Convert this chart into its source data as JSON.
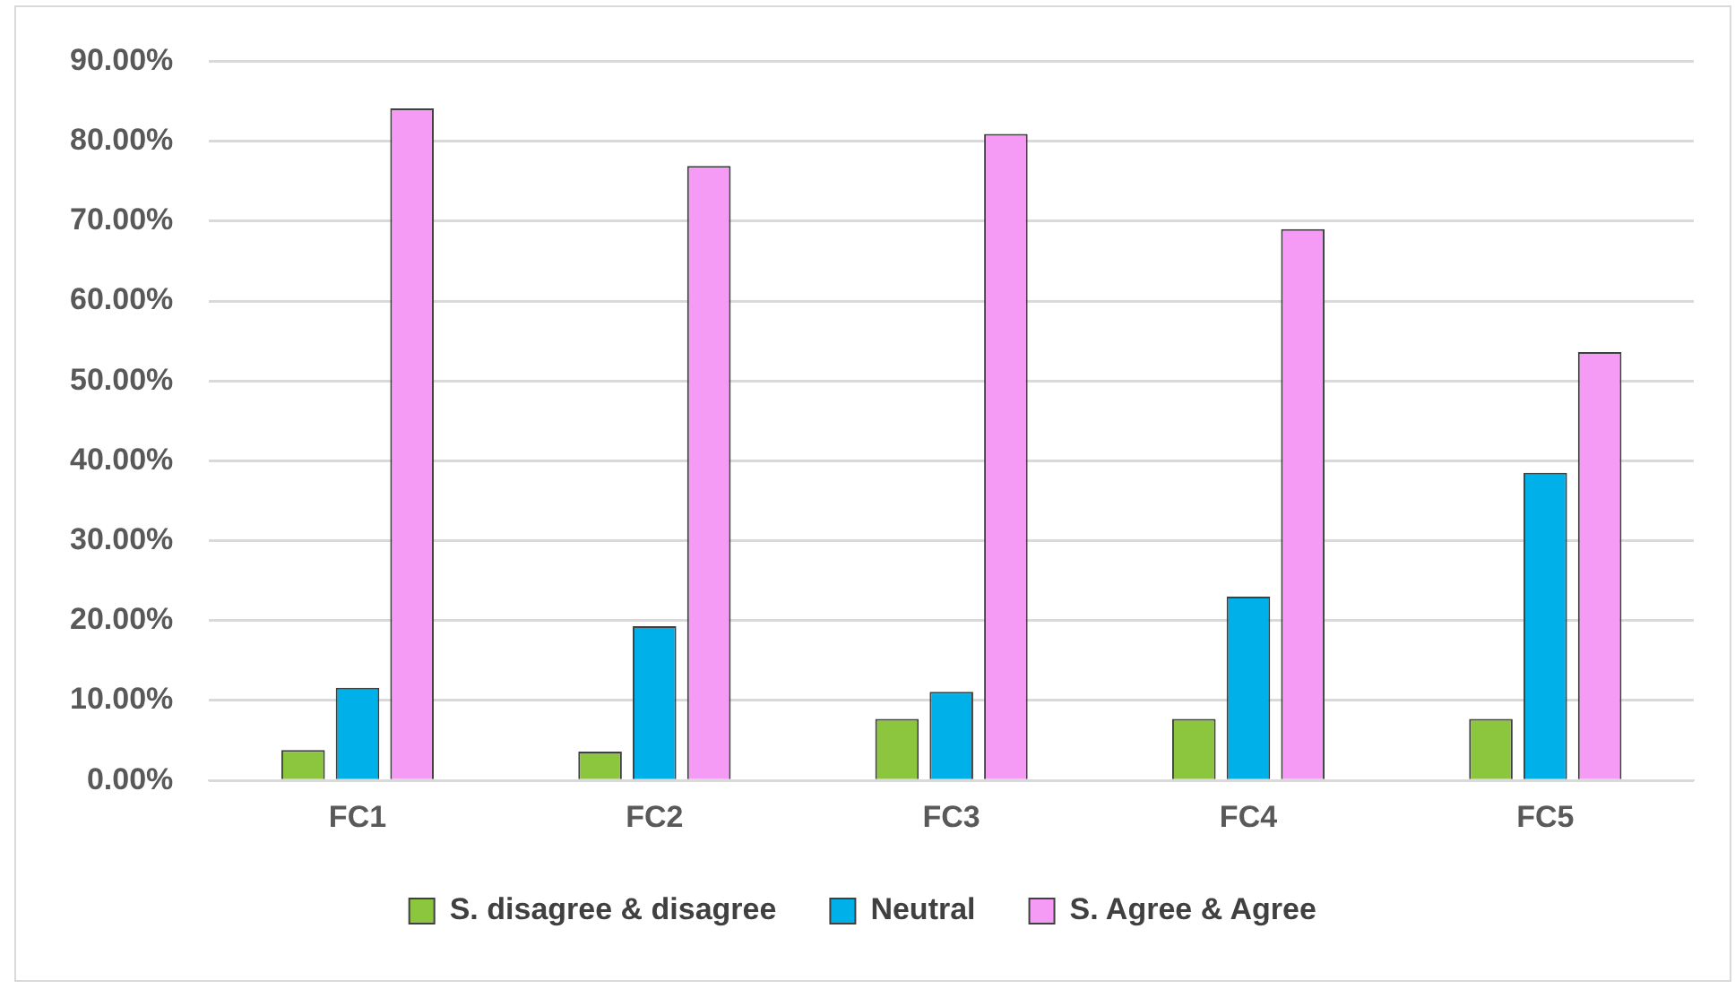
{
  "chart_data": {
    "type": "bar",
    "categories": [
      "FC1",
      "FC2",
      "FC3",
      "FC4",
      "FC5"
    ],
    "series": [
      {
        "name": "S. disagree & disagree",
        "color": "#8cc63f",
        "values": [
          3.8,
          3.6,
          7.7,
          7.7,
          7.7
        ]
      },
      {
        "name": "Neutral",
        "color": "#00b0e8",
        "values": [
          11.6,
          19.3,
          11.1,
          23.0,
          38.5
        ]
      },
      {
        "name": "S. Agree & Agree",
        "color": "#f59af5",
        "values": [
          84.1,
          76.9,
          80.9,
          69.0,
          53.6
        ]
      }
    ],
    "ylim": [
      0,
      90
    ],
    "yticks": [
      {
        "value": 0,
        "label": "0.00%"
      },
      {
        "value": 10,
        "label": "10.00%"
      },
      {
        "value": 20,
        "label": "20.00%"
      },
      {
        "value": 30,
        "label": "30.00%"
      },
      {
        "value": 40,
        "label": "40.00%"
      },
      {
        "value": 50,
        "label": "50.00%"
      },
      {
        "value": 60,
        "label": "60.00%"
      },
      {
        "value": 70,
        "label": "70.00%"
      },
      {
        "value": 80,
        "label": "80.00%"
      },
      {
        "value": 90,
        "label": "90.00%"
      }
    ],
    "grid": "y",
    "legend": "bottom"
  }
}
